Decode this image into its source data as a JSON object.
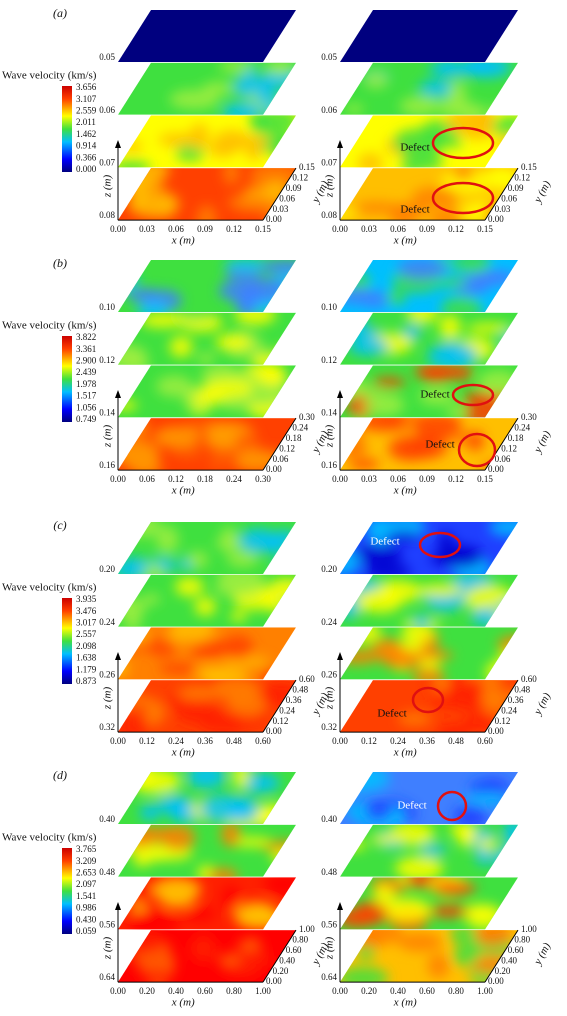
{
  "panels": [
    {
      "label": "(a)",
      "colorbar": {
        "title": "Wave velocity (km/s)",
        "ticks": [
          "3.656",
          "3.107",
          "2.559",
          "2.011",
          "1.462",
          "0.914",
          "0.366",
          "0.000"
        ]
      },
      "left": {
        "z_ticks": [
          "0.05",
          "0.06",
          "0.07",
          "0.08"
        ],
        "x_ticks": [
          "0.00",
          "0.03",
          "0.06",
          "0.09",
          "0.12",
          "0.15"
        ],
        "y_ticks": [
          "0.00",
          "0.03",
          "0.06",
          "0.09",
          "0.12",
          "0.15"
        ],
        "x_label": "x (m)",
        "y_label": "y (m)",
        "z_label": "z (m)"
      },
      "right": {
        "z_ticks": [
          "0.05",
          "0.06",
          "0.07",
          "0.08"
        ],
        "x_ticks": [
          "0.00",
          "0.03",
          "0.06",
          "0.09",
          "0.12",
          "0.15"
        ],
        "y_ticks": [
          "0.00",
          "0.03",
          "0.06",
          "0.09",
          "0.12",
          "0.15"
        ],
        "x_label": "x (m)",
        "y_label": "y (m)",
        "z_label": "z (m)",
        "defects": [
          "Defect",
          "Defect"
        ]
      }
    },
    {
      "label": "(b)",
      "colorbar": {
        "title": "Wave velocity (km/s)",
        "ticks": [
          "3.822",
          "3.361",
          "2.900",
          "2.439",
          "1.978",
          "1.517",
          "1.056",
          "0.749"
        ]
      },
      "left": {
        "z_ticks": [
          "0.10",
          "0.12",
          "0.14",
          "0.16"
        ],
        "x_ticks": [
          "0.00",
          "0.06",
          "0.12",
          "0.18",
          "0.24",
          "0.30"
        ],
        "y_ticks": [
          "0.00",
          "0.06",
          "0.12",
          "0.18",
          "0.24",
          "0.30"
        ],
        "x_label": "x (m)",
        "y_label": "y (m)",
        "z_label": "z (m)"
      },
      "right": {
        "z_ticks": [
          "0.10",
          "0.12",
          "0.14",
          "0.16"
        ],
        "x_ticks": [
          "0.00",
          "0.03",
          "0.06",
          "0.09",
          "0.12",
          "0.15"
        ],
        "y_ticks": [
          "0.00",
          "0.06",
          "0.12",
          "0.18",
          "0.24",
          "0.30"
        ],
        "x_label": "x (m)",
        "y_label": "y (m)",
        "z_label": "z (m)",
        "defects": [
          "Defect",
          "Defect"
        ]
      }
    },
    {
      "label": "(c)",
      "colorbar": {
        "title": "Wave velocity (km/s)",
        "ticks": [
          "3.935",
          "3.476",
          "3.017",
          "2.557",
          "2.098",
          "1.638",
          "1.179",
          "0.873"
        ]
      },
      "left": {
        "z_ticks": [
          "0.20",
          "0.24",
          "0.26",
          "0.32"
        ],
        "x_ticks": [
          "0.00",
          "0.12",
          "0.24",
          "0.36",
          "0.48",
          "0.60"
        ],
        "y_ticks": [
          "0.00",
          "0.12",
          "0.24",
          "0.36",
          "0.48",
          "0.60"
        ],
        "x_label": "x (m)",
        "y_label": "y (m)",
        "z_label": "z (m)"
      },
      "right": {
        "z_ticks": [
          "0.20",
          "0.24",
          "0.26",
          "0.32"
        ],
        "x_ticks": [
          "0.00",
          "0.12",
          "0.24",
          "0.36",
          "0.48",
          "0.60"
        ],
        "y_ticks": [
          "0.00",
          "0.12",
          "0.24",
          "0.36",
          "0.48",
          "0.60"
        ],
        "x_label": "x (m)",
        "y_label": "y (m)",
        "z_label": "z (m)",
        "defects": [
          "Defect",
          "Defect"
        ]
      }
    },
    {
      "label": "(d)",
      "colorbar": {
        "title": "Wave velocity (km/s)",
        "ticks": [
          "3.765",
          "3.209",
          "2.653",
          "2.097",
          "1.541",
          "0.986",
          "0.430",
          "0.059"
        ]
      },
      "left": {
        "z_ticks": [
          "0.40",
          "0.48",
          "0.56",
          "0.64"
        ],
        "x_ticks": [
          "0.00",
          "0.20",
          "0.40",
          "0.60",
          "0.80",
          "1.00"
        ],
        "y_ticks": [
          "0.00",
          "0.20",
          "0.40",
          "0.60",
          "0.80",
          "1.00"
        ],
        "x_label": "x (m)",
        "y_label": "y (m)",
        "z_label": "z (m)"
      },
      "right": {
        "z_ticks": [
          "0.40",
          "0.48",
          "0.56",
          "0.64"
        ],
        "x_ticks": [
          "0.00",
          "0.20",
          "0.40",
          "0.60",
          "0.80",
          "1.00"
        ],
        "y_ticks": [
          "0.00",
          "0.20",
          "0.40",
          "0.60",
          "0.80",
          "1.00"
        ],
        "x_label": "x (m)",
        "y_label": "y (m)",
        "z_label": "z (m)",
        "defects": [
          "Defect"
        ]
      }
    }
  ]
}
